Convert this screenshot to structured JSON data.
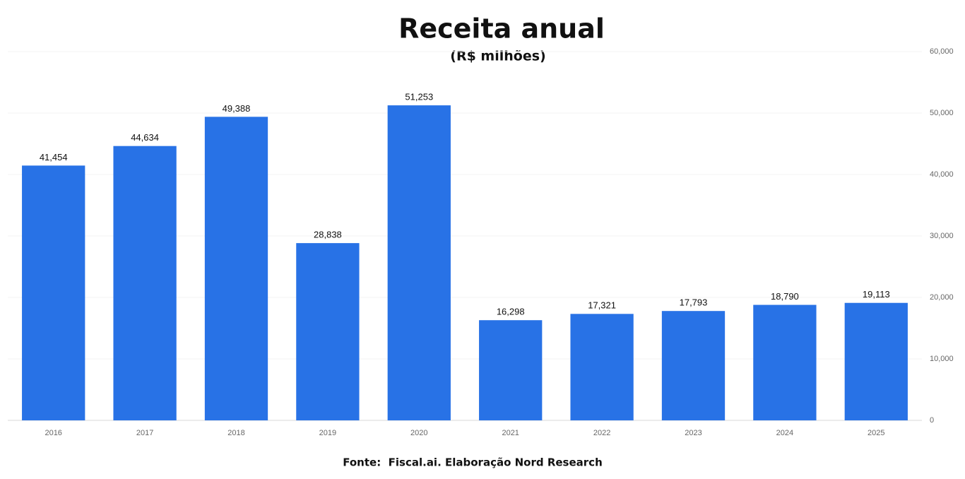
{
  "chart_data": {
    "type": "bar",
    "title": "Receita anual",
    "subtitle": "(R$ milhões)",
    "categories": [
      "2016",
      "2017",
      "2018",
      "2019",
      "2020",
      "2021",
      "2022",
      "2023",
      "2024",
      "2025"
    ],
    "values": [
      41454,
      44634,
      49388,
      28838,
      51253,
      16298,
      17321,
      17793,
      18790,
      19113
    ],
    "value_labels": [
      "41,454",
      "44,634",
      "49,388",
      "28,838",
      "51,253",
      "16,298",
      "17,321",
      "17,793",
      "18,790",
      "19,113"
    ],
    "color": "#2872e6",
    "ylim": [
      0,
      60000
    ],
    "yticks": [
      0,
      {
        "value": 10000,
        "label": "10,000"
      },
      {
        "value": 20000,
        "label": "20,000"
      },
      {
        "value": 30000,
        "label": "30,000"
      },
      {
        "value": 40000,
        "label": "40,000"
      },
      {
        "value": 50000,
        "label": "50,000"
      },
      {
        "value": 60000,
        "label": "60,000"
      }
    ],
    "y_axis_position": "right",
    "grid": true,
    "source": "Fonte:  Fiscal.ai. Elaboração Nord Research"
  }
}
